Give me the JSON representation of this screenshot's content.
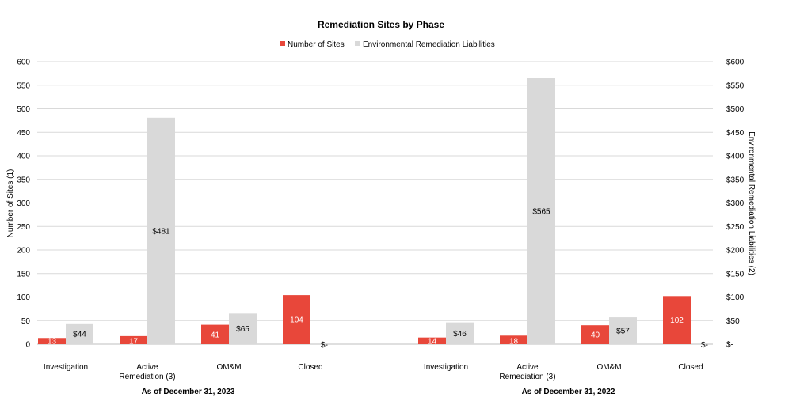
{
  "chart_data": {
    "type": "bar",
    "title": "Remediation Sites by Phase",
    "groups": [
      "As of December 31, 2023",
      "As of December 31, 2022"
    ],
    "categories": [
      "Investigation",
      "Active Remediation (3)",
      "OM&M",
      "Closed"
    ],
    "category_lines": [
      [
        "Investigation"
      ],
      [
        "Active",
        "Remediation (3)"
      ],
      [
        "OM&M"
      ],
      [
        "Closed"
      ]
    ],
    "series": [
      {
        "name": "Number of Sites",
        "axis": "left",
        "color": "#e8473a",
        "label_color": "#ffffff",
        "values": [
          [
            13,
            17,
            41,
            104
          ],
          [
            14,
            18,
            40,
            102
          ]
        ],
        "labels": [
          [
            "13",
            "17",
            "41",
            "104"
          ],
          [
            "14",
            "18",
            "40",
            "102"
          ]
        ]
      },
      {
        "name": "Environmental Remediation Liabilities",
        "axis": "right",
        "color": "#d9d9d9",
        "label_color": "#000000",
        "values": [
          [
            44,
            481,
            65,
            0
          ],
          [
            46,
            565,
            57,
            0
          ]
        ],
        "labels": [
          [
            "$44",
            "$481",
            "$65",
            "$-"
          ],
          [
            "$46",
            "$565",
            "$57",
            "$-"
          ]
        ]
      }
    ],
    "y_left": {
      "label": "Number of Sites (1)",
      "ylim": [
        0,
        600
      ],
      "ticks": [
        "600",
        "550",
        "500",
        "450",
        "400",
        "350",
        "300",
        "250",
        "200",
        "150",
        "100",
        "50",
        "0"
      ]
    },
    "y_right": {
      "label": "Environmental Remediation Liabilities (2)",
      "ylim": [
        0,
        600
      ],
      "ticks": [
        "$600",
        "$550",
        "$500",
        "$450",
        "$400",
        "$350",
        "$300",
        "$250",
        "$200",
        "$150",
        "$100",
        "$50",
        "$-"
      ]
    },
    "grid": true,
    "legend": "top-center"
  }
}
